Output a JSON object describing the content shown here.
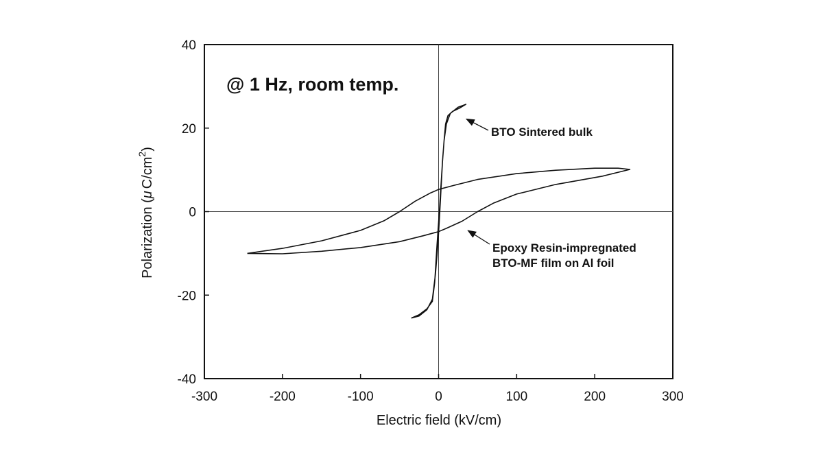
{
  "chart_data": {
    "type": "line",
    "title": "",
    "xlabel": "Electric field (kV/cm)",
    "ylabel_main": "Polarization (",
    "ylabel_mu": "μ",
    "ylabel_unit": "C/cm",
    "ylabel_sup": "2",
    "ylabel_close": ")",
    "xlim": [
      -300,
      300
    ],
    "ylim": [
      -40,
      40
    ],
    "xticks": [
      "-300",
      "-200",
      "-100",
      "0",
      "100",
      "200",
      "300"
    ],
    "yticks": [
      "-40",
      "-20",
      "0",
      "20",
      "40"
    ],
    "grid": false,
    "condition_text": "@ 1 Hz, room temp.",
    "annotations": [
      {
        "lines": [
          "BTO Sintered bulk"
        ],
        "arrow_to": [
          33,
          22.5
        ]
      },
      {
        "lines": [
          "Epoxy Resin-impregnated",
          "BTO-MF film on Al foil"
        ],
        "arrow_to": [
          35,
          -4.2
        ]
      }
    ],
    "series": [
      {
        "points": [
          [
            -35,
            -25.5
          ],
          [
            -25,
            -25
          ],
          [
            -15,
            -23.5
          ],
          [
            -8,
            -21
          ],
          [
            -4,
            -15
          ],
          [
            -1,
            -8
          ],
          [
            1,
            -2
          ],
          [
            3,
            5
          ],
          [
            5,
            12
          ],
          [
            7,
            17
          ],
          [
            10,
            21
          ],
          [
            15,
            23.5
          ],
          [
            25,
            25
          ],
          [
            35,
            25.7
          ],
          [
            27,
            24.8
          ],
          [
            18,
            24
          ],
          [
            12,
            23
          ],
          [
            9,
            21
          ],
          [
            7,
            17
          ],
          [
            5,
            12
          ],
          [
            3,
            6
          ],
          [
            1,
            0
          ],
          [
            -2,
            -8
          ],
          [
            -5,
            -17
          ],
          [
            -8,
            -21.5
          ],
          [
            -15,
            -23.3
          ],
          [
            -25,
            -24.7
          ],
          [
            -35,
            -25.5
          ]
        ]
      },
      {
        "points": [
          [
            -245,
            -10
          ],
          [
            -200,
            -8.8
          ],
          [
            -150,
            -7
          ],
          [
            -100,
            -4.5
          ],
          [
            -70,
            -2.2
          ],
          [
            -50,
            0
          ],
          [
            -30,
            2.5
          ],
          [
            -10,
            4.5
          ],
          [
            0,
            5.3
          ],
          [
            20,
            6.3
          ],
          [
            50,
            7.7
          ],
          [
            100,
            9.1
          ],
          [
            150,
            9.9
          ],
          [
            200,
            10.4
          ],
          [
            230,
            10.4
          ],
          [
            245,
            10.1
          ],
          [
            210,
            8.5
          ],
          [
            150,
            6.5
          ],
          [
            100,
            4.2
          ],
          [
            70,
            2
          ],
          [
            50,
            0
          ],
          [
            30,
            -2.3
          ],
          [
            10,
            -4
          ],
          [
            0,
            -4.8
          ],
          [
            -20,
            -5.8
          ],
          [
            -50,
            -7.2
          ],
          [
            -100,
            -8.6
          ],
          [
            -150,
            -9.5
          ],
          [
            -200,
            -10.1
          ],
          [
            -245,
            -10
          ]
        ]
      }
    ]
  }
}
